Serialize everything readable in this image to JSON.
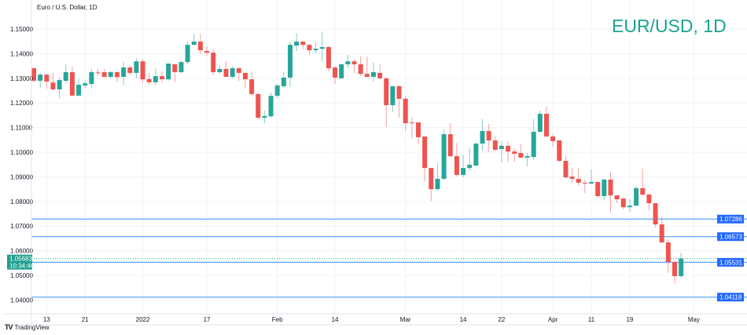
{
  "header": {
    "instrument_title": "Euro / U.S. Dollar, 1D",
    "watermark_title": "EUR/USD, 1D",
    "watermark_color": "#1aa391"
  },
  "footer": {
    "brand": "TradingView"
  },
  "colors": {
    "up": "#26a69a",
    "down": "#ef5350",
    "level_line": "#5aa7ff",
    "level_label": "#2368ff",
    "last_price": "#21a08f"
  },
  "chart_data": {
    "type": "candlestick",
    "title": "Euro / U.S. Dollar, 1D",
    "ylim": [
      1.0344,
      1.1618
    ],
    "y_ticks": [
      "1.15000",
      "1.14000",
      "1.13000",
      "1.12000",
      "1.11000",
      "1.10000",
      "1.09000",
      "1.08000",
      "1.07000",
      "1.06000",
      "1.05000",
      "1.04000"
    ],
    "y_tick_values": [
      1.15,
      1.14,
      1.13,
      1.12,
      1.11,
      1.1,
      1.09,
      1.08,
      1.07,
      1.06,
      1.05,
      1.04
    ],
    "x_ticks": [
      {
        "label": "13",
        "date": "2021-12-13"
      },
      {
        "label": "21",
        "date": "2021-12-21"
      },
      {
        "label": "2022",
        "date": "2022-01-03"
      },
      {
        "label": "17",
        "date": "2022-01-17"
      },
      {
        "label": "Feb",
        "date": "2022-02-01"
      },
      {
        "label": "14",
        "date": "2022-02-14"
      },
      {
        "label": "Mar",
        "date": "2022-03-01"
      },
      {
        "label": "14",
        "date": "2022-03-14"
      },
      {
        "label": "22",
        "date": "2022-03-22"
      },
      {
        "label": "Apr",
        "date": "2022-04-01"
      },
      {
        "label": "11",
        "date": "2022-04-11"
      },
      {
        "label": "19",
        "date": "2022-04-19"
      },
      {
        "label": "May",
        "date": "2022-05-02"
      }
    ],
    "grid": true,
    "horizontal_levels": [
      {
        "value": 1.07286,
        "label": "1.07286"
      },
      {
        "value": 1.06573,
        "label": "1.06573"
      },
      {
        "value": 1.05531,
        "label": "1.05531"
      },
      {
        "value": 1.04118,
        "label": "1.04118"
      }
    ],
    "last_price": {
      "value": 1.05683,
      "label": "1.05683",
      "countdown": "10:34:46"
    },
    "dates": [
      "2021-12-09",
      "2021-12-10",
      "2021-12-13",
      "2021-12-14",
      "2021-12-15",
      "2021-12-16",
      "2021-12-17",
      "2021-12-20",
      "2021-12-21",
      "2021-12-22",
      "2021-12-23",
      "2021-12-24",
      "2021-12-27",
      "2021-12-28",
      "2021-12-29",
      "2021-12-30",
      "2021-12-31",
      "2022-01-03",
      "2022-01-04",
      "2022-01-05",
      "2022-01-06",
      "2022-01-07",
      "2022-01-10",
      "2022-01-11",
      "2022-01-12",
      "2022-01-13",
      "2022-01-14",
      "2022-01-17",
      "2022-01-18",
      "2022-01-19",
      "2022-01-20",
      "2022-01-21",
      "2022-01-24",
      "2022-01-25",
      "2022-01-26",
      "2022-01-27",
      "2022-01-28",
      "2022-01-31",
      "2022-02-01",
      "2022-02-02",
      "2022-02-03",
      "2022-02-04",
      "2022-02-07",
      "2022-02-08",
      "2022-02-09",
      "2022-02-10",
      "2022-02-11",
      "2022-02-14",
      "2022-02-15",
      "2022-02-16",
      "2022-02-17",
      "2022-02-18",
      "2022-02-21",
      "2022-02-22",
      "2022-02-23",
      "2022-02-24",
      "2022-02-25",
      "2022-02-28",
      "2022-03-01",
      "2022-03-02",
      "2022-03-03",
      "2022-03-04",
      "2022-03-07",
      "2022-03-08",
      "2022-03-09",
      "2022-03-10",
      "2022-03-11",
      "2022-03-14",
      "2022-03-15",
      "2022-03-16",
      "2022-03-17",
      "2022-03-18",
      "2022-03-21",
      "2022-03-22",
      "2022-03-23",
      "2022-03-24",
      "2022-03-25",
      "2022-03-28",
      "2022-03-29",
      "2022-03-30",
      "2022-03-31",
      "2022-04-01",
      "2022-04-04",
      "2022-04-05",
      "2022-04-06",
      "2022-04-07",
      "2022-04-08",
      "2022-04-11",
      "2022-04-12",
      "2022-04-13",
      "2022-04-14",
      "2022-04-15",
      "2022-04-18",
      "2022-04-19",
      "2022-04-20",
      "2022-04-21",
      "2022-04-22",
      "2022-04-25",
      "2022-04-26",
      "2022-04-27",
      "2022-04-28",
      "2022-04-29"
    ],
    "ohlc": [
      [
        1.1341,
        1.1345,
        1.1285,
        1.129
      ],
      [
        1.129,
        1.1322,
        1.1261,
        1.1315
      ],
      [
        1.1315,
        1.1318,
        1.1258,
        1.1287
      ],
      [
        1.1283,
        1.1322,
        1.1252,
        1.1255
      ],
      [
        1.1255,
        1.1303,
        1.122,
        1.1293
      ],
      [
        1.129,
        1.1357,
        1.128,
        1.1325
      ],
      [
        1.1325,
        1.1347,
        1.1228,
        1.123
      ],
      [
        1.123,
        1.13,
        1.1228,
        1.1274
      ],
      [
        1.1271,
        1.129,
        1.1261,
        1.128
      ],
      [
        1.1277,
        1.1338,
        1.1261,
        1.1325
      ],
      [
        1.1324,
        1.1338,
        1.1309,
        1.1323
      ],
      [
        1.1325,
        1.1338,
        1.1304,
        1.1306
      ],
      [
        1.1306,
        1.1332,
        1.13,
        1.1325
      ],
      [
        1.1325,
        1.133,
        1.1284,
        1.1305
      ],
      [
        1.1306,
        1.1366,
        1.1274,
        1.1344
      ],
      [
        1.1344,
        1.1354,
        1.1312,
        1.1322
      ],
      [
        1.1322,
        1.1382,
        1.13,
        1.1369
      ],
      [
        1.1369,
        1.1378,
        1.1282,
        1.1296
      ],
      [
        1.1297,
        1.1322,
        1.1274,
        1.1284
      ],
      [
        1.1284,
        1.1341,
        1.1274,
        1.1309
      ],
      [
        1.1309,
        1.1328,
        1.1284,
        1.1296
      ],
      [
        1.1296,
        1.136,
        1.129,
        1.136
      ],
      [
        1.1357,
        1.136,
        1.1284,
        1.1325
      ],
      [
        1.1325,
        1.1373,
        1.1322,
        1.1366
      ],
      [
        1.1366,
        1.1449,
        1.1357,
        1.1436
      ],
      [
        1.1436,
        1.1481,
        1.1433,
        1.1449
      ],
      [
        1.1449,
        1.1481,
        1.1398,
        1.1414
      ],
      [
        1.1411,
        1.143,
        1.1392,
        1.1404
      ],
      [
        1.1404,
        1.1417,
        1.1312,
        1.1325
      ],
      [
        1.1325,
        1.1354,
        1.1318,
        1.1338
      ],
      [
        1.1338,
        1.1369,
        1.1306,
        1.1306
      ],
      [
        1.1306,
        1.135,
        1.13,
        1.1341
      ],
      [
        1.1341,
        1.1345,
        1.129,
        1.1322
      ],
      [
        1.1322,
        1.1325,
        1.1261,
        1.1296
      ],
      [
        1.1296,
        1.1325,
        1.1226,
        1.1236
      ],
      [
        1.1236,
        1.1242,
        1.1131,
        1.114
      ],
      [
        1.114,
        1.1169,
        1.1118,
        1.1147
      ],
      [
        1.1146,
        1.1242,
        1.114,
        1.1229
      ],
      [
        1.1229,
        1.1277,
        1.122,
        1.1271
      ],
      [
        1.1268,
        1.1325,
        1.1261,
        1.1303
      ],
      [
        1.1303,
        1.1449,
        1.1264,
        1.1436
      ],
      [
        1.1433,
        1.1484,
        1.1411,
        1.1449
      ],
      [
        1.1449,
        1.1452,
        1.1417,
        1.1436
      ],
      [
        1.1436,
        1.144,
        1.1395,
        1.1414
      ],
      [
        1.1414,
        1.1446,
        1.1401,
        1.142
      ],
      [
        1.142,
        1.149,
        1.1369,
        1.1427
      ],
      [
        1.1427,
        1.143,
        1.1328,
        1.1341
      ],
      [
        1.1344,
        1.135,
        1.1277,
        1.1303
      ],
      [
        1.13,
        1.136,
        1.13,
        1.1357
      ],
      [
        1.1357,
        1.1395,
        1.1341,
        1.1369
      ],
      [
        1.1369,
        1.1376,
        1.1322,
        1.1357
      ],
      [
        1.1357,
        1.1389,
        1.1309,
        1.1318
      ],
      [
        1.1318,
        1.1389,
        1.1306,
        1.1306
      ],
      [
        1.1306,
        1.1366,
        1.1287,
        1.1325
      ],
      [
        1.1322,
        1.1357,
        1.1296,
        1.13
      ],
      [
        1.13,
        1.1306,
        1.1102,
        1.1191
      ],
      [
        1.1191,
        1.1268,
        1.1163,
        1.1268
      ],
      [
        1.1268,
        1.1272,
        1.114,
        1.1217
      ],
      [
        1.1217,
        1.1229,
        1.1086,
        1.1118
      ],
      [
        1.1121,
        1.1143,
        1.1057,
        1.1118
      ],
      [
        1.1121,
        1.1121,
        1.1032,
        1.1061
      ],
      [
        1.1064,
        1.1064,
        1.0882,
        1.0936
      ],
      [
        1.0936,
        1.0936,
        1.0803,
        1.085
      ],
      [
        1.085,
        1.0955,
        1.0845,
        1.0892
      ],
      [
        1.0892,
        1.1092,
        1.0889,
        1.1073
      ],
      [
        1.1073,
        1.1118,
        1.0978,
        1.0984
      ],
      [
        1.0984,
        1.1038,
        1.0901,
        1.0908
      ],
      [
        1.0908,
        1.099,
        1.0898,
        1.0936
      ],
      [
        1.0936,
        1.1019,
        1.0924,
        1.0949
      ],
      [
        1.0946,
        1.1038,
        1.0946,
        1.1035
      ],
      [
        1.1035,
        1.1134,
        1.1006,
        1.1086
      ],
      [
        1.1086,
        1.1115,
        1.1,
        1.1048
      ],
      [
        1.1048,
        1.1064,
        1.1006,
        1.101
      ],
      [
        1.1013,
        1.1045,
        1.0959,
        1.1026
      ],
      [
        1.1026,
        1.1042,
        1.0962,
        1.1003
      ],
      [
        1.1003,
        1.1016,
        1.0962,
        1.0994
      ],
      [
        1.0997,
        1.1035,
        1.0978,
        1.0978
      ],
      [
        1.0978,
        1.0997,
        1.0943,
        1.0984
      ],
      [
        1.0981,
        1.1134,
        1.0968,
        1.1083
      ],
      [
        1.1083,
        1.1169,
        1.108,
        1.1156
      ],
      [
        1.1156,
        1.1185,
        1.1061,
        1.1064
      ],
      [
        1.1064,
        1.1073,
        1.1022,
        1.1045
      ],
      [
        1.1048,
        1.1048,
        1.0962,
        1.0965
      ],
      [
        1.0965,
        1.0984,
        1.0895,
        1.0898
      ],
      [
        1.0901,
        1.0936,
        1.0876,
        1.0892
      ],
      [
        1.0892,
        1.0936,
        1.0866,
        1.0876
      ],
      [
        1.0876,
        1.0889,
        1.0835,
        1.0873
      ],
      [
        1.0873,
        1.093,
        1.087,
        1.0879
      ],
      [
        1.0879,
        1.0882,
        1.0815,
        1.0822
      ],
      [
        1.0822,
        1.0892,
        1.0806,
        1.0889
      ],
      [
        1.0889,
        1.092,
        1.0755,
        1.0825
      ],
      [
        1.0825,
        1.0825,
        1.0793,
        1.0809
      ],
      [
        1.0812,
        1.0815,
        1.0768,
        1.0777
      ],
      [
        1.0777,
        1.0809,
        1.0758,
        1.0783
      ],
      [
        1.0783,
        1.0863,
        1.0783,
        1.0854
      ],
      [
        1.0854,
        1.0933,
        1.0822,
        1.0828
      ],
      [
        1.0828,
        1.083,
        1.0764,
        1.0793
      ],
      [
        1.0793,
        1.0793,
        1.0694,
        1.0707
      ],
      [
        1.0707,
        1.0736,
        1.0634,
        1.0634
      ],
      [
        1.0634,
        1.0646,
        1.051,
        1.0554
      ],
      [
        1.0554,
        1.0561,
        1.0468,
        1.0497
      ],
      [
        1.0497,
        1.0592,
        1.049,
        1.05683
      ]
    ]
  }
}
